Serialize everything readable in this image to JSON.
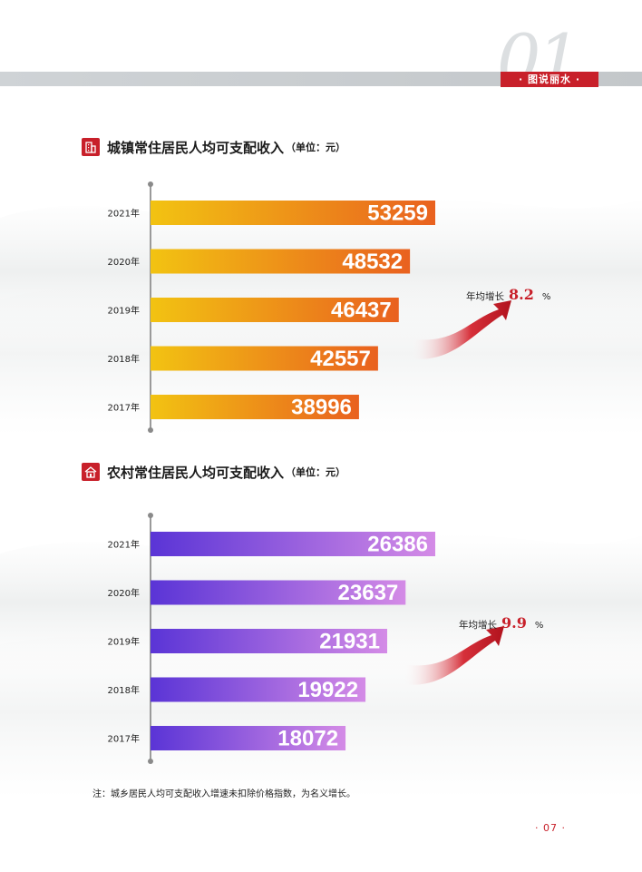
{
  "header": {
    "chapter_number": "01",
    "chapter_tag": "· 图说丽水 ·"
  },
  "urban": {
    "title": "城镇常住居民人均可支配收入",
    "unit": "（单位：元）",
    "growth_label": "年均增长",
    "growth_rate": "8.2",
    "growth_unit": "%"
  },
  "rural": {
    "title": "农村常住居民人均可支配收入",
    "unit": "（单位：元）",
    "growth_label": "年均增长",
    "growth_rate": "9.9",
    "growth_unit": "%"
  },
  "chart_data": [
    {
      "type": "bar",
      "orientation": "horizontal",
      "title": "城镇常住居民人均可支配收入",
      "unit": "元",
      "categories": [
        "2021年",
        "2020年",
        "2019年",
        "2018年",
        "2017年"
      ],
      "values": [
        53259,
        48532,
        46437,
        42557,
        38996
      ],
      "colors": {
        "start": "#f2c312",
        "end": "#e9611f"
      },
      "annotation": "年均增长 8.2 %"
    },
    {
      "type": "bar",
      "orientation": "horizontal",
      "title": "农村常住居民人均可支配收入",
      "unit": "元",
      "categories": [
        "2021年",
        "2020年",
        "2019年",
        "2018年",
        "2017年"
      ],
      "values": [
        26386,
        23637,
        21931,
        19922,
        18072
      ],
      "colors": {
        "start": "#5a34d6",
        "end": "#d48be6"
      },
      "annotation": "年均增长 9.9 %"
    }
  ],
  "footnote": "注：城乡居民人均可支配收入增速未扣除价格指数，为名义增长。",
  "page_number": "· 07 ·"
}
